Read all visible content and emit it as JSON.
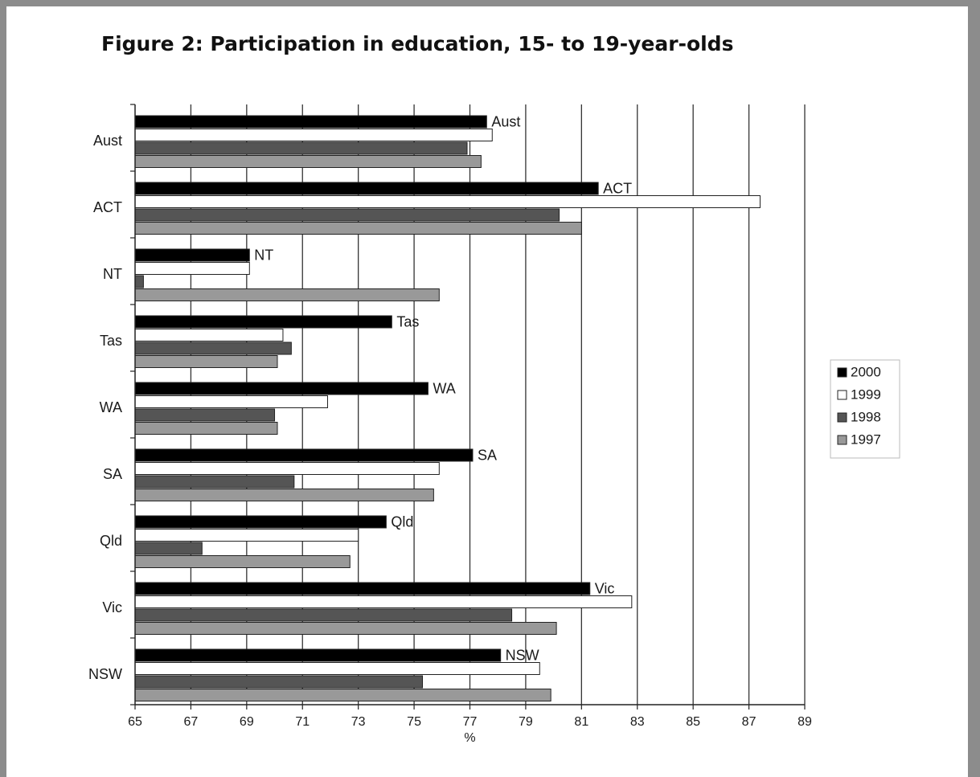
{
  "title": "Figure 2: Participation in education, 15- to 19-year-olds",
  "chart_data": {
    "type": "bar",
    "orientation": "horizontal",
    "title": "Figure 2: Participation in education, 15- to 19-year-olds",
    "xlabel": "%",
    "ylabel": "",
    "xlim": [
      65,
      89
    ],
    "xticks": [
      "65",
      "67",
      "69",
      "71",
      "73",
      "75",
      "77",
      "79",
      "81",
      "83",
      "85",
      "87",
      "89"
    ],
    "grid": "vertical",
    "legend_position": "right",
    "categories": [
      "Aust",
      "ACT",
      "NT",
      "Tas",
      "WA",
      "SA",
      "Qld",
      "Vic",
      "NSW"
    ],
    "series": [
      {
        "name": "2000",
        "color": "#000000",
        "values": [
          77.6,
          81.6,
          69.1,
          74.2,
          75.5,
          77.1,
          74.0,
          81.3,
          78.1
        ]
      },
      {
        "name": "1999",
        "color": "#ffffff",
        "values": [
          77.8,
          87.4,
          69.1,
          70.3,
          71.9,
          75.9,
          73.0,
          82.8,
          79.5
        ]
      },
      {
        "name": "1998",
        "color": "#555555",
        "values": [
          76.9,
          80.2,
          65.3,
          70.6,
          70.0,
          70.7,
          67.4,
          78.5,
          75.3
        ]
      },
      {
        "name": "1997",
        "color": "#999999",
        "values": [
          77.4,
          81.0,
          75.9,
          70.1,
          70.1,
          75.7,
          72.7,
          80.1,
          79.9
        ]
      }
    ],
    "data_labels": [
      "Aust",
      "ACT",
      "NT",
      "Tas",
      "WA",
      "SA",
      "Qld",
      "Vic",
      "NSW"
    ]
  }
}
